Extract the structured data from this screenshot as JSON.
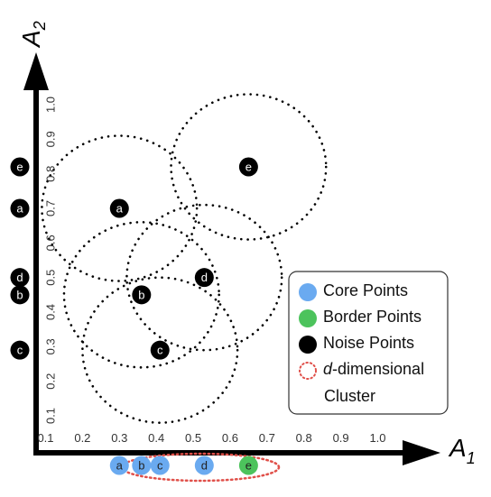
{
  "axes": {
    "x_title": "A",
    "x_sub": "1",
    "y_title": "A",
    "y_sub": "2",
    "x_ticks": [
      "0.1",
      "0.2",
      "0.3",
      "0.4",
      "0.5",
      "0.6",
      "0.7",
      "0.8",
      "0.9",
      "1.0"
    ],
    "y_ticks": [
      "0.1",
      "0.2",
      "0.3",
      "0.4",
      "0.5",
      "0.6",
      "0.7",
      "0.8",
      "0.9",
      "1.0"
    ]
  },
  "points": [
    {
      "label": "a",
      "x": 0.3,
      "y": 0.7
    },
    {
      "label": "b",
      "x": 0.36,
      "y": 0.45
    },
    {
      "label": "c",
      "x": 0.41,
      "y": 0.29
    },
    {
      "label": "d",
      "x": 0.53,
      "y": 0.5
    },
    {
      "label": "e",
      "x": 0.65,
      "y": 0.82
    }
  ],
  "neighborhood_radius": 0.21,
  "y_projections": [
    {
      "label": "e",
      "y": 0.82
    },
    {
      "label": "a",
      "y": 0.7
    },
    {
      "label": "d",
      "y": 0.5
    },
    {
      "label": "b",
      "y": 0.45
    },
    {
      "label": "c",
      "y": 0.29
    }
  ],
  "x_projections": [
    {
      "label": "a",
      "x": 0.3,
      "kind": "core"
    },
    {
      "label": "b",
      "x": 0.36,
      "kind": "core"
    },
    {
      "label": "c",
      "x": 0.41,
      "kind": "core"
    },
    {
      "label": "d",
      "x": 0.53,
      "kind": "core"
    },
    {
      "label": "e",
      "x": 0.65,
      "kind": "border"
    }
  ],
  "legend": {
    "items": [
      {
        "label": "Core Points",
        "color": "#6aaaf0"
      },
      {
        "label": "Border Points",
        "color": "#4cc35c"
      },
      {
        "label": "Noise Points",
        "color": "#000000"
      }
    ],
    "cluster_prefix": "d",
    "cluster_suffix": "-dimensional",
    "cluster_line2": "Cluster",
    "cluster_color": "#e0504a"
  },
  "colors": {
    "axis": "#000000",
    "dots": "#000000",
    "core": "#6aaaf0",
    "border": "#4cc35c",
    "noise": "#000000"
  }
}
